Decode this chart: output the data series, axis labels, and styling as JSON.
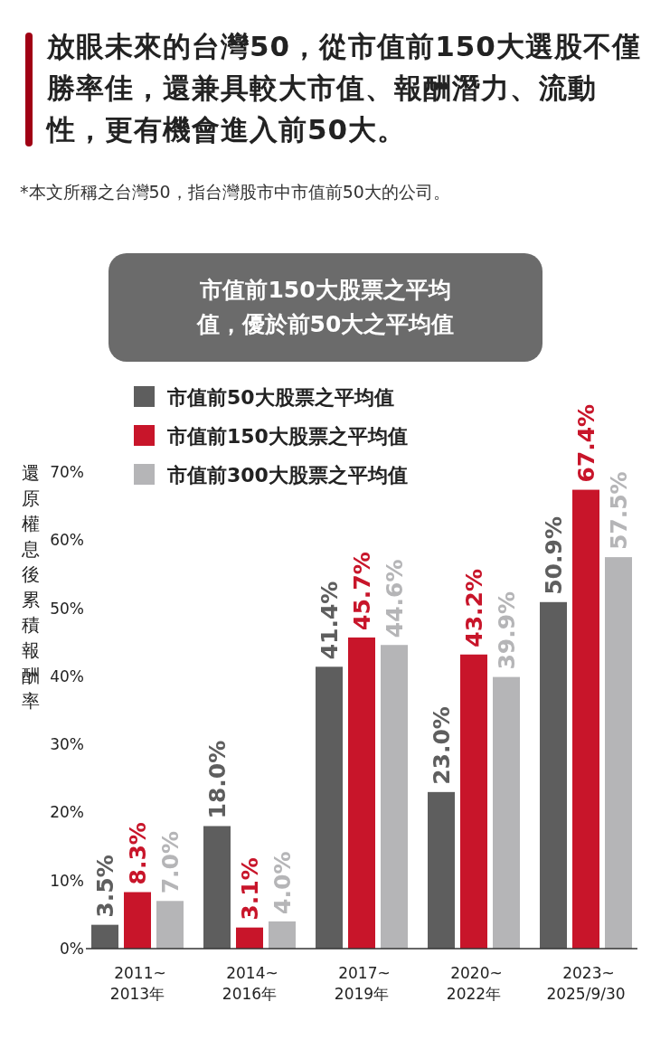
{
  "chart_data": {
    "type": "bar",
    "title": "放眼未來的台灣50，從市值前150大選股不僅勝率佳，還兼具較大市值、報酬潛力、流動性，更有機會進入前50大。",
    "subtitle": "*本文所稱之台灣50，指台灣股市中市值前50大的公司。",
    "annotations": [
      "市值前150大股票之平均值，優於前50大之平均值"
    ],
    "ylabel": "還原權息後累積報酬率",
    "categories": [
      "2011~2013年",
      "2014~2016年",
      "2017~2019年",
      "2020~2022年",
      "2023~2025/9/30"
    ],
    "series": [
      {
        "name": "市值前50大股票之平均值",
        "color": "#5e5e5e",
        "values": [
          3.5,
          18.0,
          41.4,
          23.0,
          50.9
        ],
        "value_labels": [
          "3.5%",
          "18.0%",
          "41.4%",
          "23.0%",
          "50.9%"
        ]
      },
      {
        "name": "市值前150大股票之平均值",
        "color": "#c8152a",
        "values": [
          8.3,
          3.1,
          45.7,
          43.2,
          67.4
        ],
        "value_labels": [
          "8.3%",
          "3.1%",
          "45.7%",
          "43.2%",
          "67.4%"
        ]
      },
      {
        "name": "市值前300大股票之平均值",
        "color": "#b5b5b7",
        "values": [
          7.0,
          4.0,
          44.6,
          39.9,
          57.5
        ],
        "value_labels": [
          "7.0%",
          "4.0%",
          "44.6%",
          "39.9%",
          "57.5%"
        ]
      }
    ],
    "ylim": [
      0,
      70
    ],
    "yticks": [
      {
        "value": 0,
        "label": "0%"
      },
      {
        "value": 10,
        "label": "10%"
      },
      {
        "value": 20,
        "label": "20%"
      },
      {
        "value": 30,
        "label": "30%"
      },
      {
        "value": 40,
        "label": "40%"
      },
      {
        "value": 50,
        "label": "50%"
      },
      {
        "value": 60,
        "label": "60%"
      },
      {
        "value": 70,
        "label": "70%"
      }
    ],
    "grid": false,
    "legend": "top left"
  }
}
